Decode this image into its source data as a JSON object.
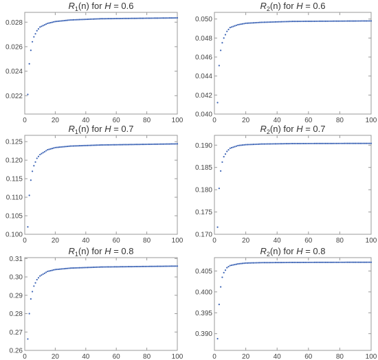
{
  "chart_data": [
    {
      "type": "scatter",
      "title": {
        "fn": "R",
        "sub": "1",
        "arg": "(n)",
        "mid": " for ",
        "param": "H",
        "rest": " = 0.6"
      },
      "color": "#3b63b5",
      "xlim": [
        0,
        100
      ],
      "ylim": [
        0.0205,
        0.0288
      ],
      "xticks": [
        0,
        20,
        40,
        60,
        80,
        100
      ],
      "xtick_labels": [
        "0",
        "20",
        "40",
        "60",
        "80",
        "100"
      ],
      "yticks": [
        0.022,
        0.024,
        0.026,
        0.028
      ],
      "ytick_labels": [
        "0.022",
        "0.024",
        "0.026",
        "0.028"
      ],
      "x_start": 2,
      "x_end": 100,
      "y_anchor": [
        [
          2,
          0.0221
        ],
        [
          3,
          0.0246
        ],
        [
          4,
          0.0257
        ],
        [
          5,
          0.0264
        ],
        [
          6,
          0.0268
        ],
        [
          8,
          0.0273
        ],
        [
          10,
          0.0276
        ],
        [
          15,
          0.0279
        ],
        [
          20,
          0.02805
        ],
        [
          30,
          0.02818
        ],
        [
          50,
          0.02828
        ],
        [
          100,
          0.02835
        ]
      ]
    },
    {
      "type": "scatter",
      "title": {
        "fn": "R",
        "sub": "2",
        "arg": "(n)",
        "mid": " for ",
        "param": "H",
        "rest": " = 0.6"
      },
      "color": "#3b63b5",
      "xlim": [
        0,
        100
      ],
      "ylim": [
        0.04,
        0.0507
      ],
      "xticks": [
        0,
        20,
        40,
        60,
        80,
        100
      ],
      "xtick_labels": [
        "0",
        "20",
        "40",
        "60",
        "80",
        "100"
      ],
      "yticks": [
        0.04,
        0.042,
        0.044,
        0.046,
        0.048,
        0.05
      ],
      "ytick_labels": [
        "0.040",
        "0.042",
        "0.044",
        "0.046",
        "0.048",
        "0.050"
      ],
      "x_start": 2,
      "x_end": 100,
      "y_anchor": [
        [
          2,
          0.0412
        ],
        [
          3,
          0.0451
        ],
        [
          4,
          0.0467
        ],
        [
          5,
          0.0475
        ],
        [
          6,
          0.048
        ],
        [
          8,
          0.0487
        ],
        [
          10,
          0.0491
        ],
        [
          15,
          0.0494
        ],
        [
          20,
          0.04955
        ],
        [
          30,
          0.04965
        ],
        [
          50,
          0.04975
        ],
        [
          100,
          0.0498
        ]
      ]
    },
    {
      "type": "scatter",
      "title": {
        "fn": "R",
        "sub": "1",
        "arg": "(n)",
        "mid": " for ",
        "param": "H",
        "rest": " = 0.7"
      },
      "color": "#3b63b5",
      "xlim": [
        0,
        100
      ],
      "ylim": [
        0.1,
        0.1267
      ],
      "xticks": [
        0,
        20,
        40,
        60,
        80,
        100
      ],
      "xtick_labels": [
        "0",
        "20",
        "40",
        "60",
        "80",
        "100"
      ],
      "yticks": [
        0.1,
        0.105,
        0.11,
        0.115,
        0.12,
        0.125
      ],
      "ytick_labels": [
        "0.100",
        "0.105",
        "0.110",
        "0.115",
        "0.120",
        "0.125"
      ],
      "x_start": 2,
      "x_end": 100,
      "y_anchor": [
        [
          2,
          0.102
        ],
        [
          3,
          0.1105
        ],
        [
          4,
          0.1146
        ],
        [
          5,
          0.117
        ],
        [
          6,
          0.1185
        ],
        [
          8,
          0.1205
        ],
        [
          10,
          0.1215
        ],
        [
          15,
          0.1228
        ],
        [
          20,
          0.1234
        ],
        [
          30,
          0.1238
        ],
        [
          50,
          0.1241
        ],
        [
          100,
          0.1244
        ]
      ]
    },
    {
      "type": "scatter",
      "title": {
        "fn": "R",
        "sub": "2",
        "arg": "(n)",
        "mid": " for ",
        "param": "H",
        "rest": " = 0.7"
      },
      "color": "#3b63b5",
      "xlim": [
        0,
        100
      ],
      "ylim": [
        0.17,
        0.1922
      ],
      "xticks": [
        0,
        20,
        40,
        60,
        80,
        100
      ],
      "xtick_labels": [
        "0",
        "20",
        "40",
        "60",
        "80",
        "100"
      ],
      "yticks": [
        0.17,
        0.175,
        0.18,
        0.185,
        0.19
      ],
      "ytick_labels": [
        "0.170",
        "0.175",
        "0.180",
        "0.185",
        "0.190"
      ],
      "x_start": 2,
      "x_end": 100,
      "y_anchor": [
        [
          2,
          0.1716
        ],
        [
          3,
          0.1803
        ],
        [
          4,
          0.1842
        ],
        [
          5,
          0.1862
        ],
        [
          6,
          0.1874
        ],
        [
          8,
          0.1886
        ],
        [
          10,
          0.1893
        ],
        [
          15,
          0.1899
        ],
        [
          20,
          0.1901
        ],
        [
          30,
          0.19025
        ],
        [
          50,
          0.19035
        ],
        [
          100,
          0.1904
        ]
      ]
    },
    {
      "type": "scatter",
      "title": {
        "fn": "R",
        "sub": "1",
        "arg": "(n)",
        "mid": " for ",
        "param": "H",
        "rest": " = 0.8"
      },
      "color": "#3b63b5",
      "xlim": [
        0,
        100
      ],
      "ylim": [
        0.26,
        0.3105
      ],
      "xticks": [
        0,
        20,
        40,
        60,
        80,
        100
      ],
      "xtick_labels": [
        "0",
        "20",
        "40",
        "60",
        "80",
        "100"
      ],
      "yticks": [
        0.26,
        0.27,
        0.28,
        0.29,
        0.3,
        0.31
      ],
      "ytick_labels": [
        "0.26",
        "0.27",
        "0.28",
        "0.29",
        "0.30",
        "0.31"
      ],
      "x_start": 2,
      "x_end": 100,
      "y_anchor": [
        [
          2,
          0.2662
        ],
        [
          3,
          0.28
        ],
        [
          4,
          0.288
        ],
        [
          5,
          0.292
        ],
        [
          6,
          0.295
        ],
        [
          8,
          0.2985
        ],
        [
          10,
          0.3005
        ],
        [
          15,
          0.303
        ],
        [
          20,
          0.304
        ],
        [
          30,
          0.3048
        ],
        [
          50,
          0.3054
        ],
        [
          100,
          0.3059
        ]
      ]
    },
    {
      "type": "scatter",
      "title": {
        "fn": "R",
        "sub": "2",
        "arg": "(n)",
        "mid": " for ",
        "param": "H",
        "rest": " = 0.8"
      },
      "color": "#3b63b5",
      "xlim": [
        0,
        100
      ],
      "ylim": [
        0.386,
        0.4082
      ],
      "xticks": [
        0,
        20,
        40,
        60,
        80,
        100
      ],
      "xtick_labels": [
        "0",
        "20",
        "40",
        "60",
        "80",
        "100"
      ],
      "yticks": [
        0.39,
        0.395,
        0.4,
        0.405
      ],
      "ytick_labels": [
        "0.390",
        "0.395",
        "0.400",
        "0.405"
      ],
      "x_start": 2,
      "x_end": 100,
      "y_anchor": [
        [
          2,
          0.3888
        ],
        [
          3,
          0.397
        ],
        [
          4,
          0.4012
        ],
        [
          5,
          0.4035
        ],
        [
          6,
          0.4046
        ],
        [
          8,
          0.4058
        ],
        [
          10,
          0.4063
        ],
        [
          15,
          0.4067
        ],
        [
          20,
          0.4069
        ],
        [
          30,
          0.407
        ],
        [
          50,
          0.40705
        ],
        [
          100,
          0.4071
        ]
      ]
    }
  ]
}
